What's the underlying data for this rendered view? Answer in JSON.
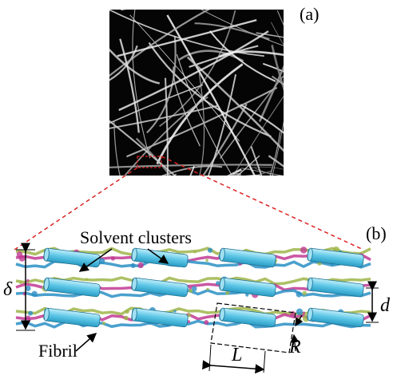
{
  "panels": [
    {
      "label": "(a)"
    },
    {
      "label": "(b)",
      "annotations": {
        "solvent_clusters": "Solvent clusters",
        "fibril": "Fibril",
        "thickness": "δ",
        "spacing": "d",
        "length": "L",
        "radius": "R"
      }
    }
  ]
}
